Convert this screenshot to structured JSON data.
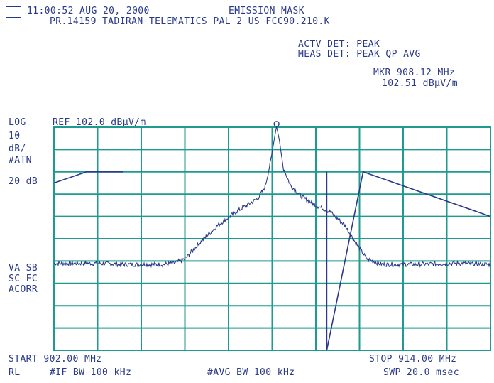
{
  "header": {
    "timestamp": "11:00:52 AUG 20, 2000",
    "title": "EMISSION MASK",
    "subtitle": "PR.14159 TADIRAN TELEMATICS PAL 2 US FCC90.210.K",
    "actv_det": "ACTV DET: PEAK",
    "meas_det": "MEAS DET: PEAK QP AVG",
    "marker_freq": "MKR 908.12 MHz",
    "marker_level": "102.51 dBµV/m"
  },
  "left_labels": {
    "scale_type": "LOG",
    "ref_level": "REF 102.0 dBµV/m",
    "div_value": "10",
    "div_unit": "dB/",
    "atten_label": "#ATN",
    "atten_value": "20 dB",
    "va_sb": "VA SB",
    "sc_fc": "SC FC",
    "corr": "ACORR"
  },
  "footer": {
    "start": "START 902.00 MHz",
    "stop": "STOP 914.00 MHz",
    "rl": "RL",
    "if_bw": "#IF BW 100 kHz",
    "avg_bw": "#AVG BW 100 kHz",
    "sweep": "SWP 20.0 msec"
  },
  "colors": {
    "grid": "#1f9a8e",
    "trace": "#2a3a8a",
    "text": "#2a3a8a",
    "background": "#ffffff"
  },
  "chart_data": {
    "type": "line",
    "xlabel": "",
    "ylabel": "",
    "xlim": [
      902.0,
      914.0
    ],
    "ylim": [
      2.0,
      102.0
    ],
    "x_unit": "MHz",
    "y_unit": "dBµV/m",
    "grid": true,
    "marker": {
      "x": 908.12,
      "y": 102.51
    },
    "series": [
      {
        "role": "trace",
        "x": [
          902.0,
          903.0,
          904.0,
          905.0,
          905.3,
          905.6,
          906.0,
          906.5,
          907.0,
          907.3,
          907.6,
          907.8,
          907.95,
          908.05,
          908.12,
          908.2,
          908.3,
          908.5,
          908.8,
          909.2,
          909.6,
          910.0,
          910.3,
          910.6,
          911.0,
          912.0,
          913.0,
          914.0
        ],
        "y": [
          41,
          41,
          40.5,
          40.5,
          41,
          43,
          50,
          58,
          64,
          67,
          70,
          75,
          86,
          96,
          102.5,
          96,
          84,
          76,
          71,
          67,
          64,
          58,
          50,
          43,
          40.5,
          40.5,
          41,
          40.5
        ]
      },
      {
        "role": "limit",
        "x": [
          902.0,
          902.9,
          903.9,
          909.5,
          909.5,
          910.5,
          914.0
        ],
        "y": [
          77,
          82,
          82,
          82,
          2,
          82,
          62
        ]
      }
    ]
  }
}
